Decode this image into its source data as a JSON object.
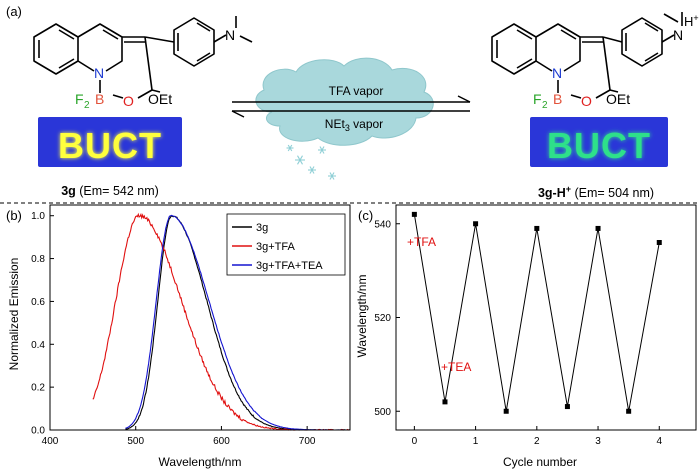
{
  "panel_a": {
    "label": "(a)",
    "left_compound": {
      "atoms": {
        "N": "N",
        "F2": "F",
        "F2_sub": "2",
        "B": "B",
        "O": "O",
        "OEt": "OEt"
      },
      "plate_text": "BUCT",
      "caption_bold": "3g",
      "caption_rest": " (Em= 542 nm)",
      "plate_bg": "#2a36d8",
      "plate_text_color": "#ffff3c",
      "glow_color": "#e6ff3c"
    },
    "right_compound": {
      "atoms": {
        "N": "N",
        "F2": "F",
        "F2_sub": "2",
        "B": "B",
        "O": "O",
        "OEt": "OEt",
        "H": "H",
        "H_sup": "+"
      },
      "plate_text": "BUCT",
      "caption_bold": "3g-H",
      "caption_sup": "+",
      "caption_rest": " (Em= 504 nm)",
      "plate_bg": "#2a36d8",
      "plate_text_color": "#2ee08a",
      "glow_color": "#7fffa0"
    },
    "arrow_top_label": "TFA vapor",
    "arrow_bottom_label_main": "NEt",
    "arrow_bottom_label_sub": "3",
    "arrow_bottom_label_rest": " vapor",
    "cloud_color": "#a9d8dc",
    "n_color": "#1d3bd1",
    "f_color": "#2aa52a",
    "b_color": "#e2523b",
    "o_color": "#e02020"
  },
  "panel_b": {
    "label": "(b)",
    "chart_data": {
      "type": "line",
      "xlabel": "Wavelength/nm",
      "ylabel": "Normalized Emission",
      "xlim": [
        400,
        750
      ],
      "ylim": [
        0.0,
        1.05
      ],
      "xticks": [
        400,
        500,
        600,
        700
      ],
      "yticks": [
        0.0,
        0.2,
        0.4,
        0.6,
        0.8,
        1.0
      ],
      "xtick_labels": [
        "400",
        "500",
        "600",
        "700"
      ],
      "ytick_labels": [
        "0.0",
        "0.2",
        "0.4",
        "0.6",
        "0.8",
        "1.0"
      ],
      "legend_position": "top-right",
      "series": [
        {
          "name": "3g",
          "color": "#000000",
          "peak": 542,
          "wl": 19,
          "wr": 48,
          "start": 488,
          "noise": 0.008
        },
        {
          "name": "3g+TFA",
          "color": "#e01010",
          "peak": 504,
          "wl": 32,
          "wr": 58,
          "start": 450,
          "noise": 0.018
        },
        {
          "name": "3g+TFA+TEA",
          "color": "#1515d0",
          "peak": 541,
          "wl": 20,
          "wr": 52,
          "start": 488,
          "noise": 0.004
        }
      ]
    }
  },
  "panel_c": {
    "label": "(c)",
    "annotation_tfa": "+TFA",
    "annotation_tea": "+TEA",
    "annotation_color": "#e01010",
    "chart_data": {
      "type": "line",
      "xlabel": "Cycle number",
      "ylabel": "Wavelength/nm",
      "xlim": [
        -0.3,
        4.6
      ],
      "ylim": [
        496,
        544
      ],
      "xticks": [
        0,
        1,
        2,
        3,
        4
      ],
      "yticks": [
        500,
        520,
        540
      ],
      "xtick_labels": [
        "0",
        "1",
        "2",
        "3",
        "4"
      ],
      "ytick_labels": [
        "500",
        "520",
        "540"
      ],
      "x": [
        0,
        0.5,
        1,
        1.5,
        2,
        2.5,
        3,
        3.5,
        4
      ],
      "y": [
        542,
        502,
        540,
        500,
        539,
        501,
        539,
        500,
        536
      ],
      "color": "#000000"
    }
  }
}
